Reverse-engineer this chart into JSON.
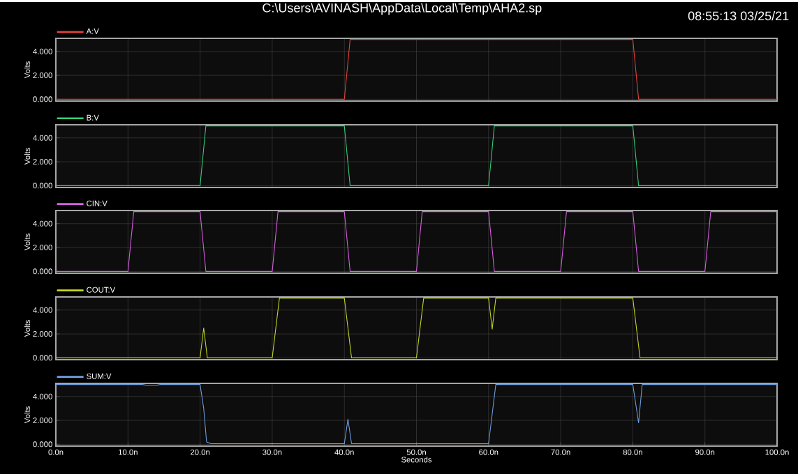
{
  "chart_data": [
    {
      "type": "line",
      "title": "C:\\Users\\AVINASH\\AppData\\Local\\Temp\\AHA2.sp",
      "annotations": [
        "08:55:13 03/25/21"
      ],
      "ylabel": "Volts",
      "grid": true,
      "legend": "top left",
      "tick_labels": "y",
      "xlim": [
        0,
        100
      ],
      "ylim": [
        -0.15,
        5.1
      ],
      "xticks": [
        {
          "value": 0,
          "label": null
        },
        {
          "value": 10,
          "label": null
        },
        {
          "value": 20,
          "label": null
        },
        {
          "value": 30,
          "label": null
        },
        {
          "value": 40,
          "label": null
        },
        {
          "value": 50,
          "label": null
        },
        {
          "value": 60,
          "label": null
        },
        {
          "value": 70,
          "label": null
        },
        {
          "value": 80,
          "label": null
        },
        {
          "value": 90,
          "label": null
        },
        {
          "value": 100,
          "label": null
        }
      ],
      "yticks": [
        {
          "value": 0,
          "label": "0.000"
        },
        {
          "value": 2,
          "label": "2.000"
        },
        {
          "value": 4,
          "label": "4.000"
        }
      ],
      "series": [
        {
          "name": "A:V",
          "color": "#e8403a",
          "x": [
            0,
            40,
            40.8,
            80,
            80.8,
            100
          ],
          "values": [
            0,
            0,
            5,
            5,
            0,
            0
          ]
        }
      ]
    },
    {
      "type": "line",
      "ylabel": "Volts",
      "grid": true,
      "legend": "top left",
      "tick_labels": "y",
      "xlim": [
        0,
        100
      ],
      "ylim": [
        -0.15,
        5.1
      ],
      "xticks": [
        {
          "value": 0,
          "label": null
        },
        {
          "value": 10,
          "label": null
        },
        {
          "value": 20,
          "label": null
        },
        {
          "value": 30,
          "label": null
        },
        {
          "value": 40,
          "label": null
        },
        {
          "value": 50,
          "label": null
        },
        {
          "value": 60,
          "label": null
        },
        {
          "value": 70,
          "label": null
        },
        {
          "value": 80,
          "label": null
        },
        {
          "value": 90,
          "label": null
        },
        {
          "value": 100,
          "label": null
        }
      ],
      "yticks": [
        {
          "value": 0,
          "label": "0.000"
        },
        {
          "value": 2,
          "label": "2.000"
        },
        {
          "value": 4,
          "label": "4.000"
        }
      ],
      "series": [
        {
          "name": "B:V",
          "color": "#33d17a",
          "x": [
            0,
            20,
            20.8,
            40,
            40.8,
            60,
            60.8,
            80,
            80.8,
            100
          ],
          "values": [
            0,
            0,
            5,
            5,
            0,
            0,
            5,
            5,
            0,
            0
          ]
        }
      ]
    },
    {
      "type": "line",
      "ylabel": "Volts",
      "grid": true,
      "legend": "top left",
      "tick_labels": "y",
      "xlim": [
        0,
        100
      ],
      "ylim": [
        -0.15,
        5.1
      ],
      "xticks": [
        {
          "value": 0,
          "label": null
        },
        {
          "value": 10,
          "label": null
        },
        {
          "value": 20,
          "label": null
        },
        {
          "value": 30,
          "label": null
        },
        {
          "value": 40,
          "label": null
        },
        {
          "value": 50,
          "label": null
        },
        {
          "value": 60,
          "label": null
        },
        {
          "value": 70,
          "label": null
        },
        {
          "value": 80,
          "label": null
        },
        {
          "value": 90,
          "label": null
        },
        {
          "value": 100,
          "label": null
        }
      ],
      "yticks": [
        {
          "value": 0,
          "label": "0.000"
        },
        {
          "value": 2,
          "label": "2.000"
        },
        {
          "value": 4,
          "label": "4.000"
        }
      ],
      "series": [
        {
          "name": "CIN:V",
          "color": "#d860e0",
          "x": [
            0,
            10,
            10.8,
            20,
            20.8,
            30,
            30.8,
            40,
            40.8,
            50,
            50.8,
            60,
            60.8,
            70,
            70.8,
            80,
            80.8,
            90,
            90.8,
            100
          ],
          "values": [
            0,
            0,
            5,
            5,
            0,
            0,
            5,
            5,
            0,
            0,
            5,
            5,
            0,
            0,
            5,
            5,
            0,
            0,
            5,
            5
          ]
        }
      ]
    },
    {
      "type": "line",
      "ylabel": "Volts",
      "grid": true,
      "legend": "top left",
      "tick_labels": "y",
      "xlim": [
        0,
        100
      ],
      "ylim": [
        -0.15,
        5.1
      ],
      "xticks": [
        {
          "value": 0,
          "label": null
        },
        {
          "value": 10,
          "label": null
        },
        {
          "value": 20,
          "label": null
        },
        {
          "value": 30,
          "label": null
        },
        {
          "value": 40,
          "label": null
        },
        {
          "value": 50,
          "label": null
        },
        {
          "value": 60,
          "label": null
        },
        {
          "value": 70,
          "label": null
        },
        {
          "value": 80,
          "label": null
        },
        {
          "value": 90,
          "label": null
        },
        {
          "value": 100,
          "label": null
        }
      ],
      "yticks": [
        {
          "value": 0,
          "label": "0.000"
        },
        {
          "value": 2,
          "label": "2.000"
        },
        {
          "value": 4,
          "label": "4.000"
        }
      ],
      "series": [
        {
          "name": "COUT:V",
          "color": "#c8d820",
          "x": [
            0,
            20,
            20.5,
            21,
            30,
            31,
            40,
            41,
            50,
            51,
            60,
            60.5,
            61,
            80,
            81,
            100
          ],
          "values": [
            0,
            0,
            2.5,
            0,
            0,
            5,
            5,
            0,
            0,
            5,
            5,
            2.4,
            5,
            5,
            0,
            0
          ]
        }
      ]
    },
    {
      "type": "line",
      "xlabel": "Seconds",
      "ylabel": "Volts",
      "grid": true,
      "legend": "top left",
      "xlim": [
        0,
        100
      ],
      "ylim": [
        -0.15,
        5.1
      ],
      "xticks": [
        {
          "value": 0,
          "label": "0.0n"
        },
        {
          "value": 10,
          "label": "10.0n"
        },
        {
          "value": 20,
          "label": "20.0n"
        },
        {
          "value": 30,
          "label": "30.0n"
        },
        {
          "value": 40,
          "label": "40.0n"
        },
        {
          "value": 50,
          "label": "50.0n"
        },
        {
          "value": 60,
          "label": "60.0n"
        },
        {
          "value": 70,
          "label": "70.0n"
        },
        {
          "value": 80,
          "label": "80.0n"
        },
        {
          "value": 90,
          "label": "90.0n"
        },
        {
          "value": 100,
          "label": "100.0n"
        }
      ],
      "yticks": [
        {
          "value": 0,
          "label": "0.000"
        },
        {
          "value": 2,
          "label": "2.000"
        },
        {
          "value": 4,
          "label": "4.000"
        }
      ],
      "series": [
        {
          "name": "SUM:V",
          "color": "#6fa0e0",
          "x": [
            0,
            12,
            12.5,
            14,
            14.5,
            20,
            20.5,
            20.9,
            21.5,
            40,
            40.5,
            41,
            60,
            61,
            80,
            80.8,
            81.3,
            100
          ],
          "values": [
            5,
            5,
            4.95,
            4.95,
            5,
            5,
            3,
            0.2,
            0.05,
            0.05,
            2.1,
            0.05,
            0.05,
            5,
            5,
            1.8,
            5,
            5
          ]
        }
      ]
    }
  ]
}
